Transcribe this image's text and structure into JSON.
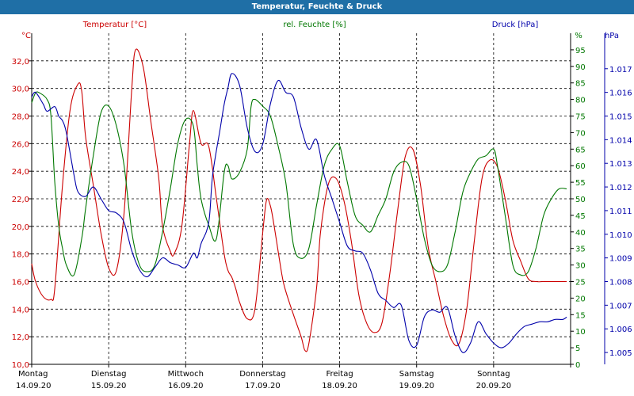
{
  "chart_data": {
    "type": "line",
    "title": "Temperatur, Feuchte & Druck",
    "x_days": [
      {
        "day": "Montag",
        "date": "14.09.20"
      },
      {
        "day": "Dienstag",
        "date": "15.09.20"
      },
      {
        "day": "Mittwoch",
        "date": "16.09.20"
      },
      {
        "day": "Donnerstag",
        "date": "17.09.20"
      },
      {
        "day": "Freitag",
        "date": "18.09.20"
      },
      {
        "day": "Samstag",
        "date": "19.09.20"
      },
      {
        "day": "Sonntag",
        "date": "20.09.20"
      }
    ],
    "x_range": [
      0,
      7
    ],
    "grid": true,
    "axes": {
      "temperature": {
        "label": "Temperatur [°C]",
        "unit": "°C",
        "range": [
          10,
          34
        ],
        "ticks": [
          "10,0",
          "12,0",
          "14,0",
          "16,0",
          "18,0",
          "20,0",
          "22,0",
          "24,0",
          "26,0",
          "28,0",
          "30,0",
          "32,0"
        ],
        "tick_values": [
          10,
          12,
          14,
          16,
          18,
          20,
          22,
          24,
          26,
          28,
          30,
          32
        ],
        "color": "#cc0000"
      },
      "humidity": {
        "label": "rel. Feuchte [%]",
        "unit": "%",
        "range": [
          0,
          100
        ],
        "ticks": [
          "0",
          "5",
          "10",
          "15",
          "20",
          "25",
          "30",
          "35",
          "40",
          "45",
          "50",
          "55",
          "60",
          "65",
          "70",
          "75",
          "80",
          "85",
          "90",
          "95"
        ],
        "tick_values": [
          0,
          5,
          10,
          15,
          20,
          25,
          30,
          35,
          40,
          45,
          50,
          55,
          60,
          65,
          70,
          75,
          80,
          85,
          90,
          95
        ],
        "color": "#007700"
      },
      "pressure": {
        "label": "Druck [hPa]",
        "unit": "hPa",
        "range": [
          1.0045,
          1.0185
        ],
        "ticks": [
          "1.005",
          "1.006",
          "1.007",
          "1.008",
          "1.009",
          "1.010",
          "1.011",
          "1.012",
          "1.013",
          "1.014",
          "1.015",
          "1.016",
          "1.017"
        ],
        "tick_values": [
          1.005,
          1.006,
          1.007,
          1.008,
          1.009,
          1.01,
          1.011,
          1.012,
          1.013,
          1.014,
          1.015,
          1.016,
          1.017
        ],
        "color": "#0000aa"
      }
    },
    "series": [
      {
        "name": "Temperatur [°C]",
        "axis": "temperature",
        "color": "#cc0000",
        "x": [
          0,
          0.05,
          0.15,
          0.25,
          0.3,
          0.4,
          0.5,
          0.6,
          0.65,
          0.7,
          0.8,
          0.9,
          1.0,
          1.1,
          1.2,
          1.3,
          1.35,
          1.45,
          1.55,
          1.65,
          1.7,
          1.8,
          1.85,
          1.95,
          2.05,
          2.1,
          2.2,
          2.3,
          2.4,
          2.5,
          2.55,
          2.6,
          2.65,
          2.7,
          2.8,
          2.9,
          3.0,
          3.05,
          3.1,
          3.15,
          3.25,
          3.3,
          3.4,
          3.5,
          3.55,
          3.6,
          3.7,
          3.75,
          3.85,
          3.95,
          4.05,
          4.15,
          4.25,
          4.35,
          4.45,
          4.55,
          4.65,
          4.75,
          4.85,
          4.95,
          5.05,
          5.15,
          5.25,
          5.35,
          5.45,
          5.55,
          5.65,
          5.75,
          5.85,
          5.95,
          6.05,
          6.15,
          6.25,
          6.35,
          6.45,
          6.55,
          6.65,
          6.75,
          6.85,
          6.95
        ],
        "y": [
          17.3,
          16.0,
          14.9,
          14.7,
          15.5,
          23.0,
          28.5,
          30.3,
          29.8,
          26.5,
          23.0,
          19.5,
          17.0,
          16.8,
          21.0,
          30.0,
          32.8,
          31.5,
          27.5,
          23.5,
          20.0,
          18.2,
          18.0,
          20.0,
          26.0,
          28.4,
          26.0,
          25.8,
          22.0,
          18.0,
          16.8,
          16.3,
          15.5,
          14.5,
          13.3,
          14.0,
          19.5,
          21.9,
          21.5,
          20.0,
          16.5,
          15.3,
          13.6,
          12.0,
          11.0,
          11.5,
          15.5,
          19.5,
          23.0,
          23.5,
          22.0,
          19.0,
          15.0,
          13.0,
          12.3,
          13.0,
          16.5,
          21.0,
          25.0,
          25.6,
          23.0,
          18.5,
          16.0,
          13.5,
          11.8,
          11.5,
          14.0,
          19.0,
          23.5,
          24.8,
          24.3,
          22.0,
          19.0,
          17.5,
          16.2,
          16.0,
          16.0,
          16.0,
          16.0,
          16.0
        ]
      },
      {
        "name": "rel. Feuchte [%]",
        "axis": "humidity",
        "color": "#007700",
        "x": [
          0,
          0.05,
          0.1,
          0.2,
          0.25,
          0.3,
          0.35,
          0.4,
          0.45,
          0.55,
          0.65,
          0.7,
          0.8,
          0.9,
          1.0,
          1.1,
          1.2,
          1.3,
          1.4,
          1.5,
          1.6,
          1.7,
          1.8,
          1.9,
          2.0,
          2.1,
          2.15,
          2.2,
          2.3,
          2.4,
          2.5,
          2.55,
          2.6,
          2.7,
          2.8,
          2.85,
          2.9,
          3.0,
          3.1,
          3.2,
          3.3,
          3.4,
          3.5,
          3.6,
          3.7,
          3.8,
          3.9,
          4.0,
          4.1,
          4.2,
          4.3,
          4.4,
          4.5,
          4.6,
          4.7,
          4.8,
          4.9,
          5.0,
          5.1,
          5.2,
          5.3,
          5.4,
          5.5,
          5.6,
          5.7,
          5.8,
          5.9,
          6.0,
          6.05,
          6.15,
          6.25,
          6.35,
          6.45,
          6.55,
          6.65,
          6.75,
          6.85,
          6.95
        ],
        "y": [
          79,
          82,
          82,
          80,
          75,
          55,
          42,
          35,
          30,
          27,
          38,
          47,
          63,
          76,
          78,
          72,
          60,
          40,
          30,
          28,
          30,
          40,
          53,
          67,
          74,
          72,
          60,
          50,
          42,
          38,
          58,
          60,
          56,
          58,
          65,
          78,
          80,
          78,
          75,
          66,
          55,
          36,
          32,
          35,
          48,
          60,
          65,
          66,
          55,
          45,
          42,
          40,
          45,
          50,
          58,
          61,
          60,
          50,
          38,
          30,
          28,
          30,
          40,
          52,
          58,
          62,
          63,
          65,
          60,
          45,
          30,
          27,
          28,
          35,
          45,
          50,
          53,
          53
        ]
      },
      {
        "name": "Druck [hPa]",
        "axis": "pressure",
        "color": "#0000aa",
        "x": [
          0,
          0.05,
          0.15,
          0.2,
          0.3,
          0.35,
          0.4,
          0.45,
          0.55,
          0.6,
          0.7,
          0.8,
          0.9,
          1.0,
          1.1,
          1.2,
          1.3,
          1.4,
          1.5,
          1.6,
          1.7,
          1.8,
          1.9,
          2.0,
          2.1,
          2.15,
          2.2,
          2.3,
          2.35,
          2.45,
          2.5,
          2.55,
          2.6,
          2.7,
          2.8,
          2.9,
          3.0,
          3.1,
          3.2,
          3.3,
          3.4,
          3.5,
          3.6,
          3.7,
          3.8,
          3.9,
          4.0,
          4.1,
          4.2,
          4.3,
          4.4,
          4.5,
          4.6,
          4.7,
          4.8,
          4.9,
          5.0,
          5.1,
          5.2,
          5.3,
          5.4,
          5.5,
          5.6,
          5.7,
          5.8,
          5.9,
          6.0,
          6.1,
          6.2,
          6.3,
          6.4,
          6.5,
          6.6,
          6.7,
          6.8,
          6.9,
          6.95
        ],
        "y": [
          1.0158,
          1.016,
          1.0155,
          1.0152,
          1.0154,
          1.015,
          1.0148,
          1.0143,
          1.0125,
          1.0118,
          1.0116,
          1.012,
          1.0115,
          1.011,
          1.0109,
          1.0105,
          1.0093,
          1.0085,
          1.0082,
          1.0086,
          1.009,
          1.0088,
          1.0087,
          1.0086,
          1.0092,
          1.009,
          1.0096,
          1.0105,
          1.0125,
          1.0145,
          1.0155,
          1.0162,
          1.0168,
          1.0163,
          1.0145,
          1.0135,
          1.0138,
          1.0155,
          1.0165,
          1.016,
          1.0158,
          1.0145,
          1.0136,
          1.014,
          1.0125,
          1.0115,
          1.0105,
          1.0095,
          1.0093,
          1.0092,
          1.0085,
          1.0075,
          1.0072,
          1.0069,
          1.007,
          1.0055,
          1.0053,
          1.0065,
          1.0068,
          1.0067,
          1.0069,
          1.0057,
          1.005,
          1.0054,
          1.0063,
          1.0058,
          1.0054,
          1.0052,
          1.0054,
          1.0058,
          1.0061,
          1.0062,
          1.0063,
          1.0063,
          1.0064,
          1.0064,
          1.0065
        ]
      }
    ]
  }
}
